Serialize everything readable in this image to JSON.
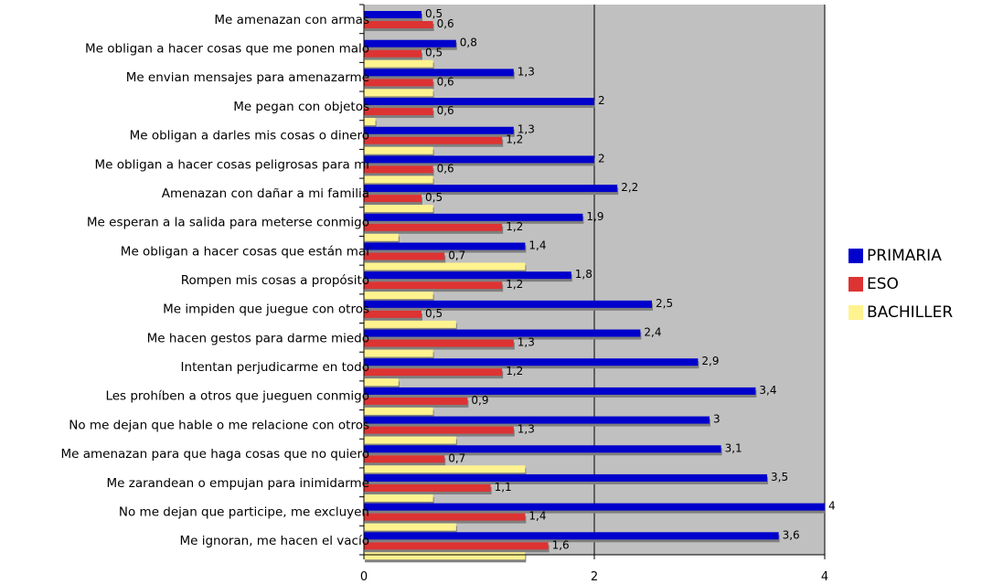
{
  "chart_data": {
    "type": "bar",
    "orientation": "horizontal",
    "categories": [
      "Me amenazan con armas",
      "Me obligan a hacer cosas que me ponen malo",
      "Me envian mensajes para amenazarme",
      "Me pegan con objetos",
      "Me obligan a darles mis cosas o dinero",
      "Me obligan a hacer cosas peligrosas para mi",
      "Amenazan con dañar a mi familia",
      "Me esperan a la salida para meterse conmigo",
      "Me obligan a hacer cosas que están mal",
      "Rompen mis cosas a propósito",
      "Me impiden que juegue con otros",
      "Me hacen gestos para darme miedo",
      "Intentan perjudicarme en todo",
      "Les prohíben a otros que jueguen conmigo",
      "No me dejan que hable o me relacione con otros",
      "Me amenazan para que haga cosas que no quiero",
      "Me zarandean o empujan para inimidarme",
      "No me dejan que participe, me excluyen",
      "Me ignoran, me hacen el vacío"
    ],
    "series": [
      {
        "name": "PRIMARIA",
        "color": "#0000CC",
        "values": [
          0.5,
          0.8,
          1.3,
          2,
          1.3,
          2,
          2.2,
          1.9,
          1.4,
          1.8,
          2.5,
          2.4,
          2.9,
          3.4,
          3,
          3.1,
          3.5,
          4,
          3.6
        ],
        "labels": [
          "0,5",
          "0,8",
          "1,3",
          "2",
          "1,3",
          "2",
          "2,2",
          "1,9",
          "1,4",
          "1,8",
          "2,5",
          "2,4",
          "2,9",
          "3,4",
          "3",
          "3,1",
          "3,5",
          "4",
          "3,6"
        ]
      },
      {
        "name": "ESO",
        "color": "#DD3333",
        "values": [
          0.6,
          0.5,
          0.6,
          0.6,
          1.2,
          0.6,
          0.5,
          1.2,
          0.7,
          1.2,
          0.5,
          1.3,
          1.2,
          0.9,
          1.3,
          0.7,
          1.1,
          1.4,
          1.6
        ],
        "labels": [
          "0,6",
          "0,5",
          "0,6",
          "0,6",
          "1,2",
          "0,6",
          "0,5",
          "1,2",
          "0,7",
          "1,2",
          "0,5",
          "1,3",
          "1,2",
          "0,9",
          "1,3",
          "0,7",
          "1,1",
          "1,4",
          "1,6"
        ]
      },
      {
        "name": "BACHILLER",
        "color": "#FFF38F",
        "values": [
          null,
          0.6,
          0.6,
          0.1,
          0.6,
          0.6,
          0.6,
          0.3,
          1.4,
          0.6,
          0.8,
          0.6,
          0.3,
          0.6,
          0.8,
          1.4,
          0.6,
          0.8,
          1.4
        ],
        "labels": []
      }
    ],
    "xlim": [
      0,
      4
    ],
    "xticks": [
      "0",
      "2",
      "4"
    ],
    "grid": true,
    "legend_position": "right",
    "plot_background": "#C0C0C0"
  }
}
